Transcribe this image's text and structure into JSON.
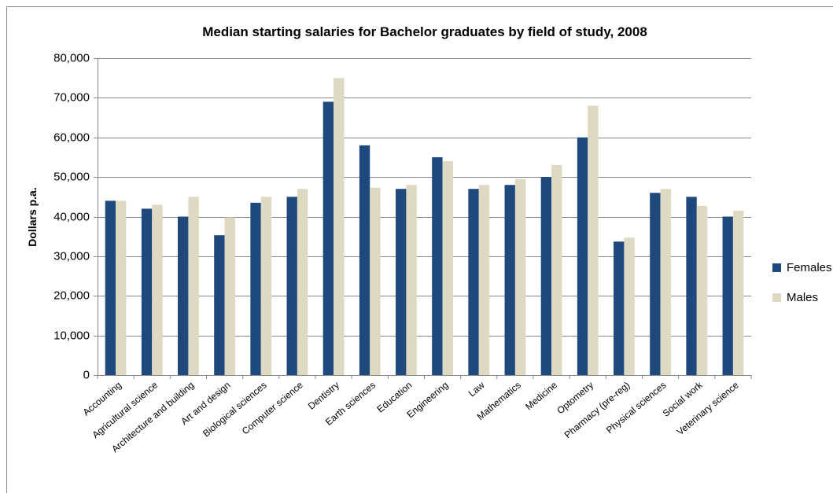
{
  "chart_data": {
    "type": "bar",
    "title": "Median starting salaries for Bachelor graduates by field of study, 2008",
    "y_label": "Dollars p.a.",
    "categories": [
      "Accounting",
      "Agricultural science",
      "Architecture and building",
      "Art and design",
      "Biological sciences",
      "Computer science",
      "Dentistry",
      "Earth sciences",
      "Education",
      "Engineering",
      "Law",
      "Mathematics",
      "Medicine",
      "Optometry",
      "Pharmacy (pre-reg)",
      "Physical sciences",
      "Social work",
      "Veterinary science"
    ],
    "series": [
      {
        "name": "Females",
        "color": "#1f497d",
        "values": [
          44000,
          42000,
          40000,
          35300,
          43500,
          45000,
          69000,
          58000,
          47000,
          55000,
          47000,
          48000,
          50000,
          60000,
          33700,
          46000,
          45000,
          40000
        ]
      },
      {
        "name": "Males",
        "color": "#ddd9c3",
        "values": [
          44000,
          43000,
          45000,
          39800,
          45000,
          47000,
          75000,
          47300,
          48000,
          54000,
          48000,
          49500,
          53000,
          68000,
          34700,
          47000,
          42700,
          41500
        ]
      }
    ],
    "ylim": [
      0,
      80000
    ],
    "yticks": [
      0,
      {
        "value": 10000,
        "label": "10,000"
      },
      {
        "value": 20000,
        "label": "20,000"
      },
      {
        "value": 30000,
        "label": "30,000"
      },
      {
        "value": 40000,
        "label": "40,000"
      },
      {
        "value": 50000,
        "label": "50,000"
      },
      {
        "value": 60000,
        "label": "60,000"
      },
      {
        "value": 70000,
        "label": "70,000"
      },
      {
        "value": 80000,
        "label": "80,000"
      }
    ],
    "grid": true,
    "legend": "right"
  }
}
